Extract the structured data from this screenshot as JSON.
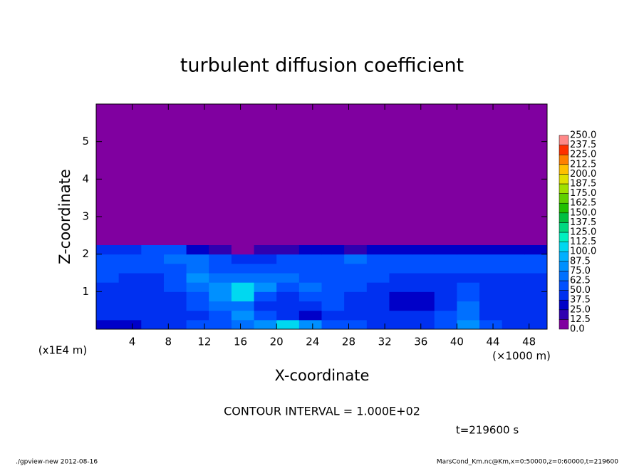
{
  "chart_data": {
    "type": "contour",
    "title": "turbulent diffusion coefficient",
    "x_label": "X-coordinate",
    "y_label": "Z-coordinate",
    "x_unit": "(×1000 m)",
    "y_unit": "(x1E4 m)",
    "contour_interval": "CONTOUR INTERVAL = 1.000E+02",
    "time_label": "t=219600 s",
    "footer_left": "./gpview-new  2012-08-16",
    "footer_right": "MarsCond_Km.nc@Km,x=0:50000,z=0:60000,t=219600",
    "xlim": [
      0,
      50
    ],
    "ylim": [
      0,
      6
    ],
    "xticks": [
      4,
      8,
      12,
      16,
      20,
      24,
      28,
      32,
      36,
      40,
      44,
      48
    ],
    "yticks": [
      1,
      2,
      3,
      4,
      5
    ],
    "x_edges": [
      0,
      2.5,
      5,
      7.5,
      10,
      12.5,
      15,
      17.5,
      20,
      22.5,
      25,
      27.5,
      30,
      32.5,
      35,
      37.5,
      40,
      42.5,
      45,
      47.5,
      50
    ],
    "y_edges": [
      0,
      0.25,
      0.5,
      0.75,
      1,
      1.25,
      1.5,
      1.75,
      2,
      2.25,
      6
    ],
    "z": [
      [
        35,
        35,
        40,
        45,
        50,
        60,
        70,
        75,
        110,
        80,
        60,
        50,
        45,
        45,
        45,
        50,
        75,
        50,
        45,
        40
      ],
      [
        40,
        45,
        40,
        40,
        45,
        55,
        75,
        50,
        40,
        35,
        40,
        45,
        45,
        45,
        45,
        50,
        70,
        45,
        40,
        40
      ],
      [
        45,
        45,
        40,
        40,
        50,
        70,
        70,
        40,
        40,
        45,
        50,
        45,
        40,
        35,
        35,
        45,
        65,
        45,
        40,
        40
      ],
      [
        45,
        40,
        40,
        45,
        60,
        75,
        105,
        60,
        45,
        55,
        55,
        45,
        40,
        35,
        35,
        40,
        60,
        40,
        40,
        40
      ],
      [
        45,
        45,
        40,
        50,
        70,
        80,
        100,
        75,
        55,
        65,
        55,
        50,
        45,
        40,
        40,
        40,
        50,
        40,
        40,
        40
      ],
      [
        50,
        45,
        45,
        55,
        75,
        70,
        65,
        70,
        65,
        60,
        55,
        55,
        50,
        45,
        45,
        45,
        45,
        45,
        45,
        45
      ],
      [
        55,
        50,
        50,
        60,
        70,
        60,
        50,
        55,
        60,
        55,
        60,
        60,
        55,
        50,
        50,
        50,
        50,
        50,
        50,
        50
      ],
      [
        60,
        55,
        60,
        70,
        65,
        50,
        40,
        45,
        50,
        55,
        60,
        65,
        60,
        55,
        55,
        55,
        55,
        55,
        55,
        55
      ],
      [
        40,
        45,
        60,
        50,
        30,
        15,
        10,
        15,
        20,
        25,
        30,
        20,
        30,
        35,
        30,
        30,
        30,
        30,
        30,
        30
      ],
      [
        0,
        0,
        0,
        0,
        0,
        0,
        0,
        0,
        0,
        0,
        0,
        0,
        0,
        0,
        0,
        0,
        0,
        0,
        0,
        0
      ]
    ],
    "colorbar": {
      "levels": [
        {
          "value": 0,
          "label": "0.0"
        },
        {
          "value": 12.5,
          "label": "12.5"
        },
        {
          "value": 25,
          "label": "25.0"
        },
        {
          "value": 37.5,
          "label": "37.5"
        },
        {
          "value": 50,
          "label": "50.0"
        },
        {
          "value": 62.5,
          "label": "62.5"
        },
        {
          "value": 75,
          "label": "75.0"
        },
        {
          "value": 87.5,
          "label": "87.5"
        },
        {
          "value": 100,
          "label": "100.0"
        },
        {
          "value": 112.5,
          "label": "112.5"
        },
        {
          "value": 125,
          "label": "125.0"
        },
        {
          "value": 137.5,
          "label": "137.5"
        },
        {
          "value": 150,
          "label": "150.0"
        },
        {
          "value": 162.5,
          "label": "162.5"
        },
        {
          "value": 175,
          "label": "175.0"
        },
        {
          "value": 187.5,
          "label": "187.5"
        },
        {
          "value": 200,
          "label": "200.0"
        },
        {
          "value": 212.5,
          "label": "212.5"
        },
        {
          "value": 225,
          "label": "225.0"
        },
        {
          "value": 237.5,
          "label": "237.5"
        },
        {
          "value": 250,
          "label": "250.0"
        }
      ],
      "colors": [
        "#8000a0",
        "#3000b0",
        "#0000c8",
        "#0030f0",
        "#0050ff",
        "#0070ff",
        "#0090ff",
        "#00b0ff",
        "#00d8f0",
        "#00f0c0",
        "#00d880",
        "#00c040",
        "#20c000",
        "#60d000",
        "#a0e000",
        "#e0e000",
        "#ffc000",
        "#ff8000",
        "#ff3000",
        "#ff8888"
      ]
    }
  }
}
